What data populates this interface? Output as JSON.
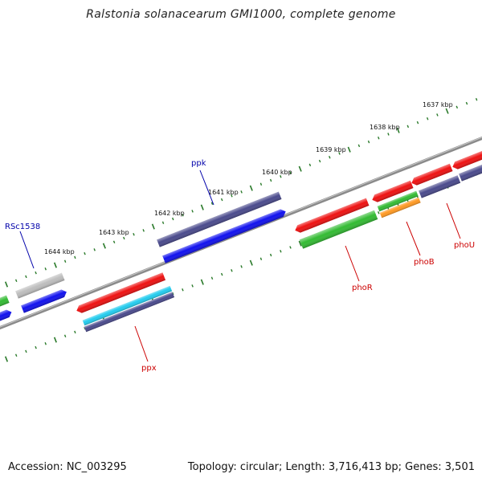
{
  "title": "Ralstonia solanacearum GMI1000, complete genome",
  "accession": "Accession: NC_003295",
  "summary": "Topology: circular; Length: 3,716,413 bp; Genes: 3,501",
  "colors": {
    "red": "#ee1111",
    "green": "#33bb33",
    "blue": "#1111ee",
    "navy": "#4a4a8c",
    "gray": "#bdbdbd",
    "cyan": "#22ccee",
    "orange": "#ff9922",
    "backbone": "#808080",
    "ticks": "#2a7a2a",
    "label_red": "#cc0000",
    "label_blue": "#0000aa"
  },
  "kbp_labels": [
    "1637 kbp",
    "1638 kbp",
    "1639 kbp",
    "1640 kbp",
    "1641 kbp",
    "1642 kbp",
    "1643 kbp",
    "1644 kbp"
  ],
  "gene_labels": [
    "ppk",
    "RSc1538",
    "ppx",
    "phoR",
    "phoB",
    "phoU"
  ]
}
